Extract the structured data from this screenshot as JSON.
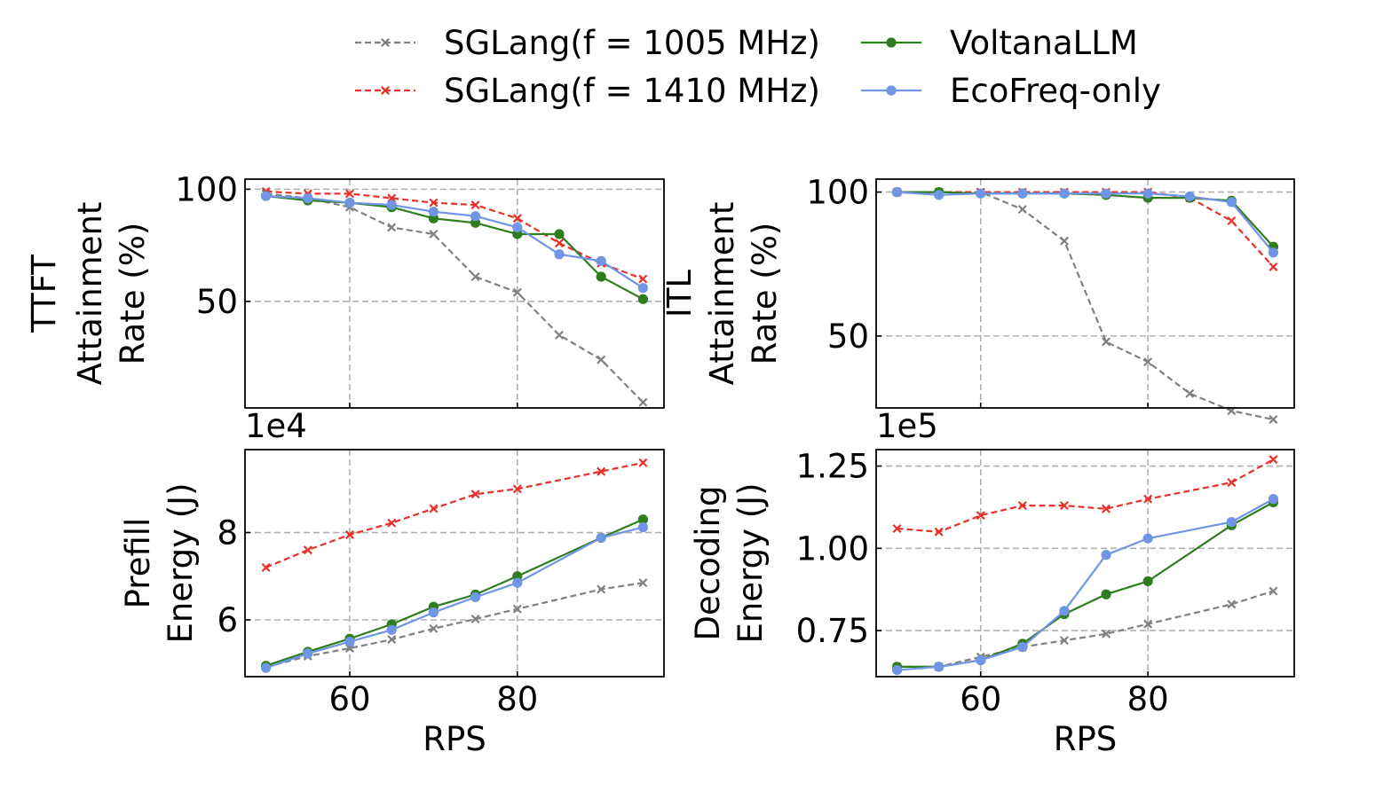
{
  "legend": {
    "placement": "top-center",
    "items": [
      {
        "label": "SGLang(f = 1005 MHz)",
        "series": "sglang_1005"
      },
      {
        "label": "VoltanaLLM",
        "series": "voltanallm"
      },
      {
        "label": "SGLang(f = 1410 MHz)",
        "series": "sglang_1410"
      },
      {
        "label": "EcoFreq-only",
        "series": "ecofreq"
      }
    ]
  },
  "series_style": {
    "sglang_1005": {
      "color": "#808080",
      "dash": "dashed",
      "marker": "x"
    },
    "sglang_1410": {
      "color": "#e8312a",
      "dash": "dashed",
      "marker": "x"
    },
    "voltanallm": {
      "color": "#2e7d1f",
      "dash": "solid",
      "marker": "o"
    },
    "ecofreq": {
      "color": "#6f95e4",
      "dash": "solid",
      "marker": "o"
    }
  },
  "chart_data": [
    {
      "id": "ttft",
      "type": "line",
      "ylabel_lines": [
        "TTFT",
        "Attainment",
        "Rate (%)"
      ],
      "xlabel": "",
      "x": [
        50,
        55,
        60,
        65,
        70,
        75,
        80,
        85,
        90,
        95
      ],
      "xlim": [
        47.5,
        97.5
      ],
      "ylim": [
        2.5,
        104.5
      ],
      "xticks": [
        60,
        80
      ],
      "xtick_labels": [
        "",
        ""
      ],
      "yticks": [
        50,
        100
      ],
      "ytick_labels": [
        "50",
        "100"
      ],
      "grid": true,
      "series": [
        {
          "key": "sglang_1005",
          "name": "SGLang(f = 1005 MHz)",
          "values": [
            98,
            96,
            92,
            83,
            80,
            61,
            54,
            35,
            24,
            5
          ]
        },
        {
          "key": "sglang_1410",
          "name": "SGLang(f = 1410 MHz)",
          "values": [
            99,
            98,
            98,
            96,
            94,
            93,
            87,
            76,
            67,
            60
          ]
        },
        {
          "key": "voltanallm",
          "name": "VoltanaLLM",
          "values": [
            97,
            95,
            94,
            92,
            87,
            85,
            80,
            80,
            61,
            51
          ]
        },
        {
          "key": "ecofreq",
          "name": "EcoFreq-only",
          "values": [
            97,
            96,
            94,
            93,
            90,
            88,
            83,
            71,
            68,
            56
          ]
        }
      ]
    },
    {
      "id": "itl",
      "type": "line",
      "ylabel_lines": [
        "ITL",
        "Attainment",
        "Rate (%)"
      ],
      "xlabel": "",
      "x": [
        50,
        55,
        60,
        65,
        70,
        75,
        80,
        85,
        90,
        95
      ],
      "xlim": [
        47.5,
        97.5
      ],
      "ylim": [
        25,
        104.5
      ],
      "xticks": [
        60,
        80
      ],
      "xtick_labels": [
        "",
        ""
      ],
      "yticks": [
        50,
        100
      ],
      "ytick_labels": [
        "50",
        "100"
      ],
      "grid": true,
      "series": [
        {
          "key": "sglang_1005",
          "name": "SGLang(f = 1005 MHz)",
          "values": [
            100,
            100,
            100,
            94,
            83,
            48,
            41,
            30,
            24,
            21
          ]
        },
        {
          "key": "sglang_1410",
          "name": "SGLang(f = 1410 MHz)",
          "values": [
            100,
            100,
            100,
            100,
            100,
            100,
            100,
            98,
            90,
            74
          ]
        },
        {
          "key": "voltanallm",
          "name": "VoltanaLLM",
          "values": [
            100,
            100,
            99.5,
            99.5,
            99.5,
            99,
            98,
            98,
            97,
            81
          ]
        },
        {
          "key": "ecofreq",
          "name": "EcoFreq-only",
          "values": [
            100,
            99,
            99.5,
            99.5,
            99.5,
            99.5,
            99.5,
            98.5,
            96.5,
            79
          ]
        }
      ]
    },
    {
      "id": "prefill",
      "type": "line",
      "ylabel_lines": [
        "Prefill",
        "Energy (J)"
      ],
      "xlabel": "RPS",
      "offset_label": "1e4",
      "x": [
        50,
        55,
        60,
        65,
        70,
        75,
        80,
        85,
        90,
        95
      ],
      "xlim": [
        47.5,
        97.5
      ],
      "ylim": [
        4.7,
        9.9
      ],
      "xticks": [
        60,
        80
      ],
      "xtick_labels": [
        "60",
        "80"
      ],
      "yticks": [
        6,
        8
      ],
      "ytick_labels": [
        "6",
        "8"
      ],
      "grid": true,
      "series": [
        {
          "key": "sglang_1005",
          "name": "SGLang(f = 1005 MHz)",
          "values": [
            4.92,
            5.17,
            5.35,
            5.55,
            5.8,
            6.02,
            6.25,
            null,
            6.7,
            6.85
          ]
        },
        {
          "key": "sglang_1410",
          "name": "SGLang(f = 1410 MHz)",
          "values": [
            7.2,
            7.6,
            7.95,
            8.22,
            8.55,
            8.88,
            9.0,
            null,
            9.4,
            9.6
          ]
        },
        {
          "key": "voltanallm",
          "name": "VoltanaLLM",
          "values": [
            4.95,
            5.27,
            5.57,
            5.9,
            6.3,
            6.58,
            7.0,
            null,
            7.88,
            8.3
          ]
        },
        {
          "key": "ecofreq",
          "name": "EcoFreq-only",
          "values": [
            4.9,
            5.23,
            5.5,
            5.77,
            6.17,
            6.52,
            6.85,
            null,
            7.88,
            8.12
          ]
        }
      ]
    },
    {
      "id": "decoding",
      "type": "line",
      "ylabel_lines": [
        "Decoding",
        "Energy (J)"
      ],
      "xlabel": "RPS",
      "offset_label": "1e5",
      "x": [
        50,
        55,
        60,
        65,
        70,
        75,
        80,
        85,
        90,
        95
      ],
      "xlim": [
        47.5,
        97.5
      ],
      "ylim": [
        0.61,
        1.3
      ],
      "xticks": [
        60,
        80
      ],
      "xtick_labels": [
        "60",
        "80"
      ],
      "yticks": [
        0.75,
        1.0,
        1.25
      ],
      "ytick_labels": [
        "0.75",
        "1.00",
        "1.25"
      ],
      "grid": true,
      "series": [
        {
          "key": "sglang_1005",
          "name": "SGLang(f = 1005 MHz)",
          "values": [
            0.64,
            0.64,
            0.67,
            0.7,
            0.72,
            0.74,
            0.77,
            null,
            0.83,
            0.87
          ]
        },
        {
          "key": "sglang_1410",
          "name": "SGLang(f = 1410 MHz)",
          "values": [
            1.06,
            1.05,
            1.1,
            1.13,
            1.13,
            1.12,
            1.15,
            null,
            1.2,
            1.27
          ]
        },
        {
          "key": "voltanallm",
          "name": "VoltanaLLM",
          "values": [
            0.64,
            0.64,
            0.66,
            0.71,
            0.8,
            0.86,
            0.9,
            null,
            1.07,
            1.14
          ]
        },
        {
          "key": "ecofreq",
          "name": "EcoFreq-only",
          "values": [
            0.63,
            0.64,
            0.66,
            0.7,
            0.81,
            0.98,
            1.03,
            null,
            1.08,
            1.15
          ]
        }
      ]
    }
  ]
}
